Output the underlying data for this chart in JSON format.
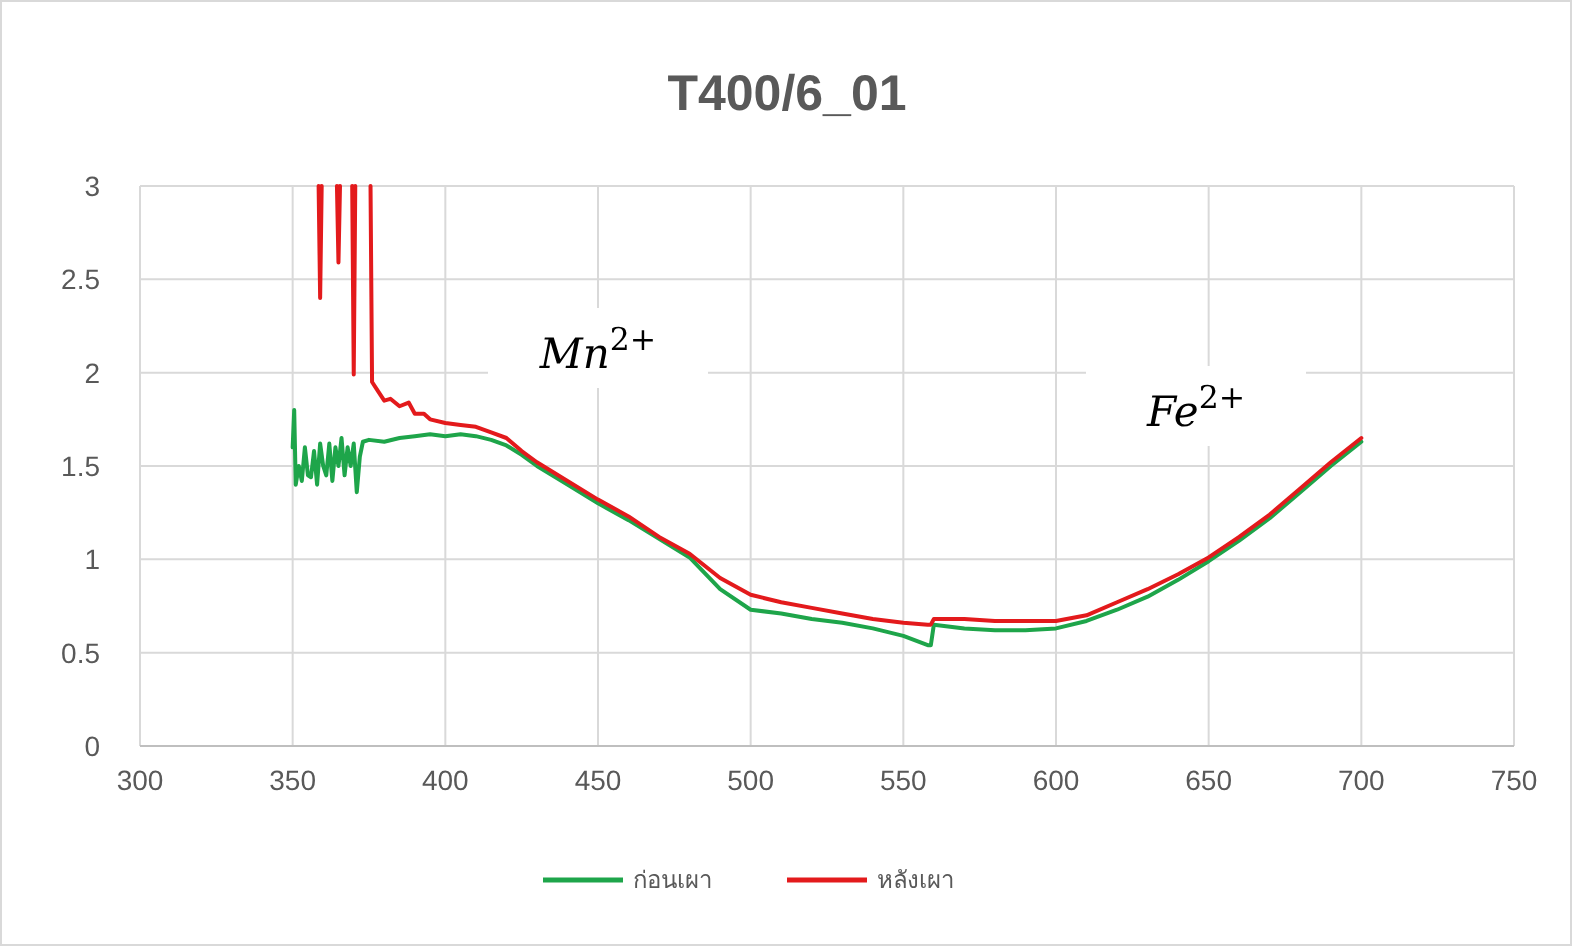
{
  "chart_data": {
    "type": "line",
    "title": "T400/6_01",
    "xlim": [
      300,
      750
    ],
    "xticks": [
      300,
      350,
      400,
      450,
      500,
      550,
      600,
      650,
      700,
      750
    ],
    "ylim": [
      0,
      3
    ],
    "yticks": [
      0,
      {
        "value": 0.5,
        "label": "0.5"
      },
      1,
      {
        "value": 1.5,
        "label": "1.5"
      },
      2,
      {
        "value": 2.5,
        "label": "2.5"
      },
      3
    ],
    "grid": true,
    "legend": "bottom",
    "marker": "none",
    "line_style": "solid",
    "annotations": [
      "Mn$^{2+}$",
      "Fe$^{2+}$"
    ],
    "series": [
      {
        "name": "ก่อนเผา",
        "color": "#1ea54a",
        "x": [
          350,
          350.5,
          351,
          352,
          353,
          354,
          355,
          356,
          357,
          358,
          359,
          360,
          361,
          362,
          363,
          364,
          365,
          366,
          367,
          368,
          369,
          370,
          371,
          372,
          373,
          375,
          380,
          385,
          390,
          395,
          400,
          405,
          410,
          415,
          420,
          425,
          430,
          440,
          450,
          460,
          470,
          480,
          490,
          500,
          510,
          520,
          530,
          540,
          550,
          558,
          559,
          560,
          570,
          580,
          590,
          600,
          610,
          620,
          630,
          640,
          650,
          660,
          670,
          675,
          680,
          690,
          700
        ],
        "values": [
          1.6,
          1.8,
          1.4,
          1.5,
          1.42,
          1.6,
          1.45,
          1.44,
          1.58,
          1.4,
          1.62,
          1.5,
          1.45,
          1.62,
          1.42,
          1.6,
          1.5,
          1.65,
          1.45,
          1.6,
          1.5,
          1.62,
          1.36,
          1.55,
          1.63,
          1.64,
          1.63,
          1.65,
          1.66,
          1.67,
          1.66,
          1.67,
          1.66,
          1.64,
          1.61,
          1.56,
          1.5,
          1.4,
          1.3,
          1.21,
          1.11,
          1.01,
          0.84,
          0.73,
          0.71,
          0.68,
          0.66,
          0.63,
          0.59,
          0.54,
          0.54,
          0.65,
          0.63,
          0.62,
          0.62,
          0.63,
          0.67,
          0.73,
          0.8,
          0.89,
          0.99,
          1.1,
          1.22,
          1.29,
          1.36,
          1.5,
          1.63
        ]
      },
      {
        "name": "หลังเผา",
        "color": "#e31a1c",
        "x": [
          358.5,
          359,
          359.5,
          364.5,
          365,
          365.5,
          369.5,
          370,
          370.5,
          375.5,
          376,
          378,
          380,
          382,
          385,
          388,
          390,
          393,
          395,
          400,
          405,
          410,
          415,
          420,
          425,
          430,
          440,
          450,
          460,
          470,
          480,
          490,
          500,
          510,
          520,
          530,
          540,
          550,
          558,
          559,
          560,
          570,
          580,
          590,
          600,
          610,
          620,
          630,
          640,
          650,
          660,
          670,
          675,
          680,
          690,
          700
        ],
        "values": [
          3,
          2.4,
          3,
          3,
          2.59,
          3,
          3,
          1.99,
          3,
          3,
          1.95,
          1.9,
          1.85,
          1.86,
          1.82,
          1.84,
          1.78,
          1.78,
          1.75,
          1.73,
          1.72,
          1.71,
          1.68,
          1.65,
          1.58,
          1.52,
          1.42,
          1.32,
          1.23,
          1.12,
          1.03,
          0.9,
          0.81,
          0.77,
          0.74,
          0.71,
          0.68,
          0.66,
          0.65,
          0.65,
          0.68,
          0.68,
          0.67,
          0.67,
          0.67,
          0.7,
          0.77,
          0.84,
          0.92,
          1.01,
          1.12,
          1.24,
          1.31,
          1.38,
          1.52,
          1.65
        ]
      }
    ]
  }
}
